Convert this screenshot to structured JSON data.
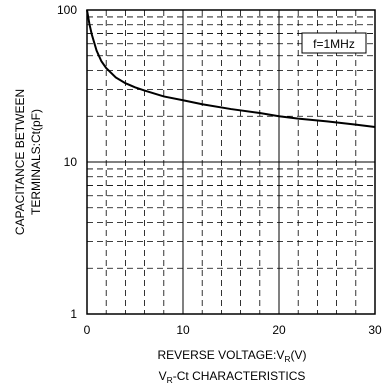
{
  "chart_data": {
    "type": "line",
    "title": "",
    "xlabel": "REVERSE VOLTAGE:V",
    "xlabel_sub": "R",
    "xlabel_suffix": "(V)",
    "ylabel_line1": "CAPACITANCE BETWEEN",
    "ylabel_line2": "TERMINALS:Ct(pF)",
    "caption": "V",
    "caption_sub": "R",
    "caption_suffix": "-Ct CHARACTERISTICS",
    "annotation": "f=1MHz",
    "xlim": [
      0,
      30
    ],
    "ylim": [
      1,
      100
    ],
    "y_scale": "log",
    "x_ticks": [
      "0",
      "10",
      "20",
      "30"
    ],
    "y_ticks": [
      "1",
      "10",
      "100"
    ],
    "grid": true,
    "series": [
      {
        "x": [
          0,
          0.25,
          0.5,
          1,
          1.5,
          2,
          3,
          4,
          5,
          6,
          8,
          10,
          12,
          15,
          18,
          20,
          22,
          25,
          28,
          30
        ],
        "y": [
          100,
          81,
          69,
          54,
          46,
          41.5,
          36,
          33,
          31,
          29.5,
          27,
          25.5,
          24,
          22.3,
          21,
          20,
          19.3,
          18.5,
          17.6,
          17
        ]
      }
    ]
  }
}
